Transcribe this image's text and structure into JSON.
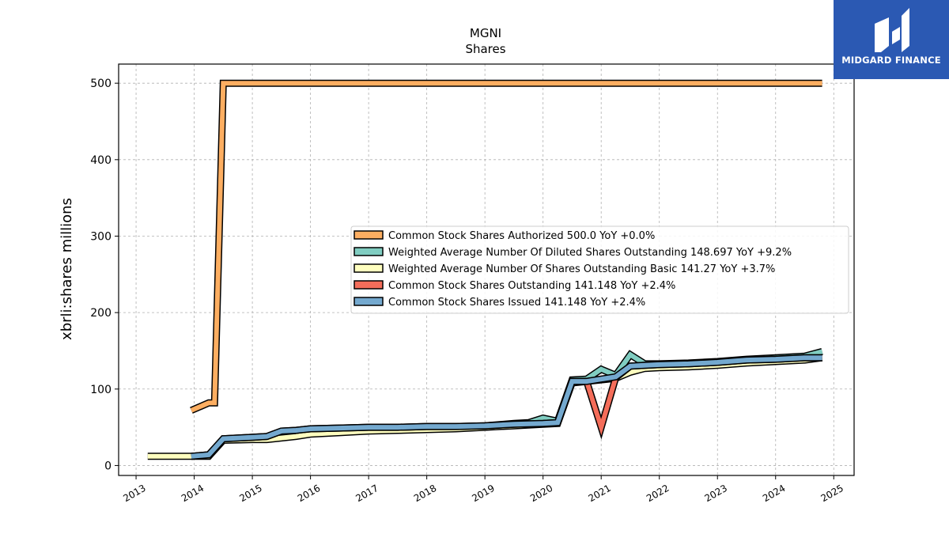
{
  "logo": {
    "text": "MIDGARD FINANCE",
    "background": "#2b59b3"
  },
  "chart_data": {
    "type": "line",
    "title": "MGNI",
    "subtitle": "Shares",
    "ylabel": "xbrli:shares millions",
    "xlabel": "",
    "xlim": [
      2012.7,
      2025.35
    ],
    "ylim": [
      -13,
      525
    ],
    "xticks": [
      2013,
      2014,
      2015,
      2016,
      2017,
      2018,
      2019,
      2020,
      2021,
      2022,
      2023,
      2024,
      2025
    ],
    "yticks": [
      0,
      100,
      200,
      300,
      400,
      500
    ],
    "grid": true,
    "legend_position": "center-right",
    "series": [
      {
        "name": "Common Stock Shares Authorized",
        "legend_label": "Common Stock Shares Authorized  500.0 YoY +0.0%",
        "color": "#fdae61",
        "points": [
          [
            2013.95,
            72
          ],
          [
            2014.25,
            82
          ],
          [
            2014.35,
            82
          ],
          [
            2014.5,
            500
          ],
          [
            2024.8,
            500
          ]
        ]
      },
      {
        "name": "Weighted Average Number Of Diluted Shares Outstanding",
        "legend_label": "Weighted Average Number Of Diluted Shares Outstanding  148.697 YoY +9.2%",
        "color": "#80cdc1",
        "points": [
          [
            2015.25,
            35
          ],
          [
            2015.5,
            40
          ],
          [
            2015.75,
            42
          ],
          [
            2016.0,
            44
          ],
          [
            2016.5,
            46
          ],
          [
            2017.0,
            47
          ],
          [
            2017.5,
            48
          ],
          [
            2018.0,
            49
          ],
          [
            2018.5,
            50
          ],
          [
            2019.0,
            52
          ],
          [
            2019.5,
            55
          ],
          [
            2019.75,
            56
          ],
          [
            2020.0,
            62
          ],
          [
            2020.25,
            58
          ],
          [
            2020.5,
            112
          ],
          [
            2020.75,
            113
          ],
          [
            2021.0,
            126
          ],
          [
            2021.25,
            118
          ],
          [
            2021.5,
            145
          ],
          [
            2021.75,
            133
          ],
          [
            2022.0,
            133
          ],
          [
            2022.5,
            134
          ],
          [
            2023.0,
            136
          ],
          [
            2023.5,
            139
          ],
          [
            2024.0,
            141
          ],
          [
            2024.5,
            143
          ],
          [
            2024.8,
            149
          ]
        ]
      },
      {
        "name": "Weighted Average Number Of Shares Outstanding Basic",
        "legend_label": "Weighted Average Number Of Shares Outstanding Basic  141.27 YoY +3.7%",
        "color": "#ffffbf",
        "points": [
          [
            2013.2,
            12
          ],
          [
            2013.95,
            12
          ],
          [
            2014.25,
            12
          ],
          [
            2014.5,
            33
          ],
          [
            2015.0,
            34
          ],
          [
            2015.25,
            34
          ],
          [
            2015.5,
            36
          ],
          [
            2015.75,
            38
          ],
          [
            2016.0,
            41
          ],
          [
            2016.5,
            43
          ],
          [
            2017.0,
            45
          ],
          [
            2017.5,
            46
          ],
          [
            2018.0,
            47
          ],
          [
            2018.5,
            48
          ],
          [
            2019.0,
            50
          ],
          [
            2019.5,
            52
          ],
          [
            2020.0,
            54
          ],
          [
            2020.25,
            55
          ],
          [
            2020.5,
            108
          ],
          [
            2020.75,
            110
          ],
          [
            2021.0,
            112
          ],
          [
            2021.25,
            114
          ],
          [
            2021.5,
            122
          ],
          [
            2021.75,
            127
          ],
          [
            2022.0,
            128
          ],
          [
            2022.5,
            129
          ],
          [
            2023.0,
            131
          ],
          [
            2023.5,
            134
          ],
          [
            2024.0,
            136
          ],
          [
            2024.5,
            138
          ],
          [
            2024.8,
            141
          ]
        ]
      },
      {
        "name": "Common Stock Shares Outstanding",
        "legend_label": "Common Stock Shares Outstanding  141.148 YoY +2.4%",
        "color": "#f46d5a",
        "points": [
          [
            2013.95,
            12
          ],
          [
            2014.25,
            14
          ],
          [
            2014.5,
            35
          ],
          [
            2015.0,
            37
          ],
          [
            2015.25,
            38
          ],
          [
            2015.5,
            45
          ],
          [
            2015.75,
            46
          ],
          [
            2016.0,
            48
          ],
          [
            2016.5,
            49
          ],
          [
            2017.0,
            50
          ],
          [
            2017.5,
            50
          ],
          [
            2018.0,
            51
          ],
          [
            2018.5,
            51
          ],
          [
            2019.0,
            52
          ],
          [
            2019.5,
            54
          ],
          [
            2020.0,
            55
          ],
          [
            2020.25,
            56
          ],
          [
            2020.5,
            110
          ],
          [
            2020.75,
            110
          ],
          [
            2021.0,
            50
          ],
          [
            2021.25,
            115
          ],
          [
            2021.5,
            130
          ],
          [
            2021.75,
            131
          ],
          [
            2022.0,
            132
          ],
          [
            2022.5,
            133
          ],
          [
            2023.0,
            135
          ],
          [
            2023.5,
            138
          ],
          [
            2024.0,
            139
          ],
          [
            2024.5,
            141
          ],
          [
            2024.8,
            141
          ]
        ]
      },
      {
        "name": "Common Stock Shares Issued",
        "legend_label": "Common Stock Shares Issued  141.148 YoY +2.4%",
        "color": "#74a9cf",
        "points": [
          [
            2013.95,
            12
          ],
          [
            2014.25,
            14
          ],
          [
            2014.5,
            35
          ],
          [
            2015.0,
            37
          ],
          [
            2015.25,
            38
          ],
          [
            2015.5,
            45
          ],
          [
            2015.75,
            46
          ],
          [
            2016.0,
            48
          ],
          [
            2016.5,
            49
          ],
          [
            2017.0,
            50
          ],
          [
            2017.5,
            50
          ],
          [
            2018.0,
            51
          ],
          [
            2018.5,
            51
          ],
          [
            2019.0,
            52
          ],
          [
            2019.5,
            54
          ],
          [
            2020.0,
            55
          ],
          [
            2020.25,
            56
          ],
          [
            2020.5,
            110
          ],
          [
            2020.75,
            110
          ],
          [
            2021.0,
            113
          ],
          [
            2021.25,
            116
          ],
          [
            2021.5,
            130
          ],
          [
            2021.75,
            131
          ],
          [
            2022.0,
            132
          ],
          [
            2022.5,
            133
          ],
          [
            2023.0,
            135
          ],
          [
            2023.5,
            138
          ],
          [
            2024.0,
            139
          ],
          [
            2024.5,
            141
          ],
          [
            2024.8,
            141
          ]
        ]
      }
    ]
  }
}
